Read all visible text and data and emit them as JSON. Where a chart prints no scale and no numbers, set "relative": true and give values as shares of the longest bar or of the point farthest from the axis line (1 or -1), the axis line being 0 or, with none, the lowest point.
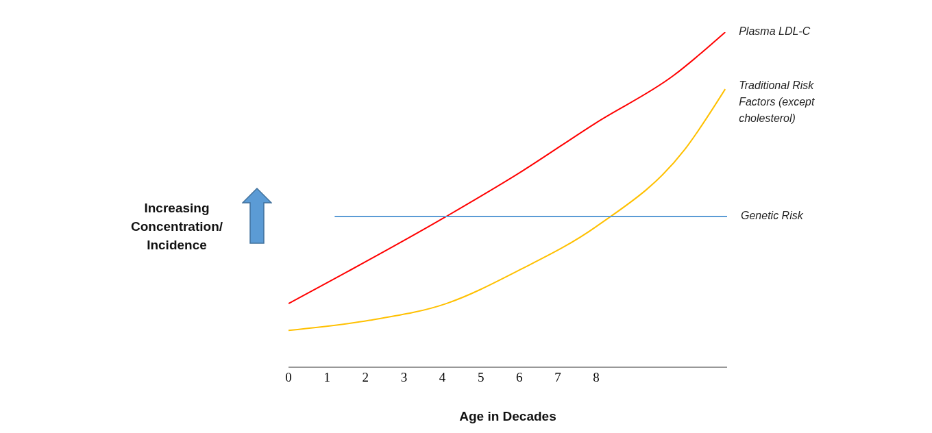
{
  "chart_data": {
    "type": "line",
    "relative": true,
    "xlabel": "Age in Decades",
    "ylabel": "Increasing Concentration/ Incidence",
    "xlim": [
      0,
      11.4
    ],
    "xticks": [
      0,
      1,
      2,
      3,
      4,
      5,
      6,
      7,
      8
    ],
    "grid": false,
    "legend": false,
    "marker": "none",
    "series": [
      {
        "name": "Plasma LDL-C",
        "color": "#ff0000",
        "x": [
          0,
          4.1,
          6,
          8,
          10,
          11.35
        ],
        "values": [
          0.19,
          0.45,
          0.58,
          0.73,
          0.87,
          1
        ]
      },
      {
        "name": "Traditional Risk Factors (except cholesterol)",
        "color": "#ffc000",
        "x": [
          0,
          2.1,
          4.1,
          6,
          8,
          10.3,
          11.35
        ],
        "values": [
          0.11,
          0.14,
          0.19,
          0.29,
          0.42,
          0.65,
          0.83
        ]
      },
      {
        "name": "Genetic Risk",
        "color": "#5b9bd5",
        "x": [
          1.2,
          11.4
        ],
        "values": [
          0.45,
          0.45
        ]
      }
    ]
  }
}
